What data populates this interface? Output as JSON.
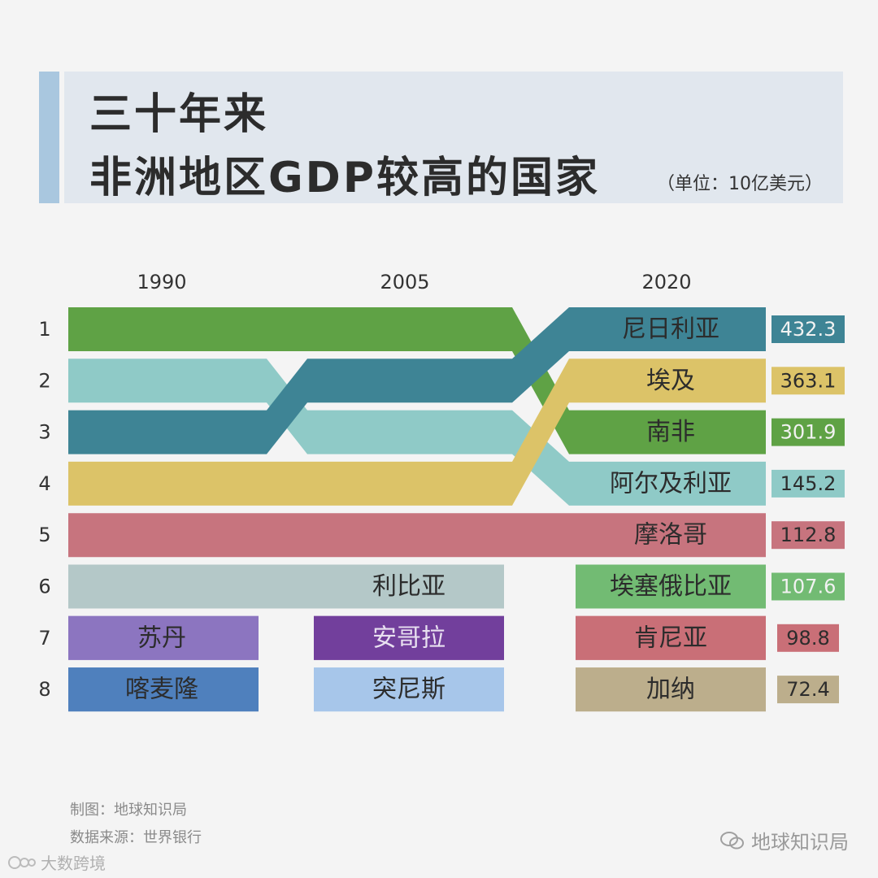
{
  "header": {
    "title_line1": "三十年来",
    "title_line2": "非洲地区GDP较高的国家",
    "unit": "（单位：10亿美元）"
  },
  "chart_data": {
    "type": "bump",
    "years": [
      "1990",
      "2005",
      "2020"
    ],
    "ranks": [
      "1",
      "2",
      "3",
      "4",
      "5",
      "6",
      "7",
      "8"
    ],
    "countries": [
      {
        "name": "南非",
        "color": "#5fa245",
        "ranks": [
          1,
          1,
          3
        ]
      },
      {
        "name": "阿尔及利亚",
        "color": "#8fcac7",
        "ranks": [
          2,
          3,
          4
        ]
      },
      {
        "name": "尼日利亚",
        "color": "#3e8495",
        "ranks": [
          3,
          2,
          1
        ]
      },
      {
        "name": "埃及",
        "color": "#dcc368",
        "ranks": [
          4,
          4,
          2
        ]
      },
      {
        "name": "摩洛哥",
        "color": "#c7747e",
        "ranks": [
          5,
          5,
          5
        ]
      },
      {
        "name": "利比亚",
        "color": "#b4c8c8",
        "ranks": [
          6,
          6,
          null
        ]
      },
      {
        "name": "苏丹",
        "color": "#8c75c0",
        "ranks": [
          7,
          null,
          null
        ]
      },
      {
        "name": "喀麦隆",
        "color": "#4f80bd",
        "ranks": [
          8,
          null,
          null
        ]
      },
      {
        "name": "安哥拉",
        "color": "#723f9c",
        "ranks": [
          null,
          7,
          null
        ]
      },
      {
        "name": "突尼斯",
        "color": "#a7c6ea",
        "ranks": [
          null,
          8,
          null
        ]
      },
      {
        "name": "埃塞俄比亚",
        "color": "#72bb73",
        "ranks": [
          null,
          null,
          6
        ]
      },
      {
        "name": "肯尼亚",
        "color": "#c96f77",
        "ranks": [
          null,
          null,
          7
        ]
      },
      {
        "name": "加纳",
        "color": "#bcae8c",
        "ranks": [
          null,
          null,
          8
        ]
      }
    ],
    "labels": [
      {
        "country": "利比亚",
        "column": 1
      },
      {
        "country": "苏丹",
        "column": 0
      },
      {
        "country": "喀麦隆",
        "column": 0
      },
      {
        "country": "安哥拉",
        "column": 1
      },
      {
        "country": "突尼斯",
        "column": 1
      }
    ],
    "gdp_2020": [
      {
        "country": "尼日利亚",
        "value": "432.3"
      },
      {
        "country": "埃及",
        "value": "363.1"
      },
      {
        "country": "南非",
        "value": "301.9"
      },
      {
        "country": "阿尔及利亚",
        "value": "145.2"
      },
      {
        "country": "摩洛哥",
        "value": "112.8"
      },
      {
        "country": "埃塞俄比亚",
        "value": "107.6"
      },
      {
        "country": "肯尼亚",
        "value": "98.8"
      },
      {
        "country": "加纳",
        "value": "72.4"
      }
    ]
  },
  "footer": {
    "credit": "制图：地球知识局",
    "source": "数据来源：世界银行"
  },
  "watermarks": {
    "right": "地球知识局",
    "left": "大数跨境"
  }
}
